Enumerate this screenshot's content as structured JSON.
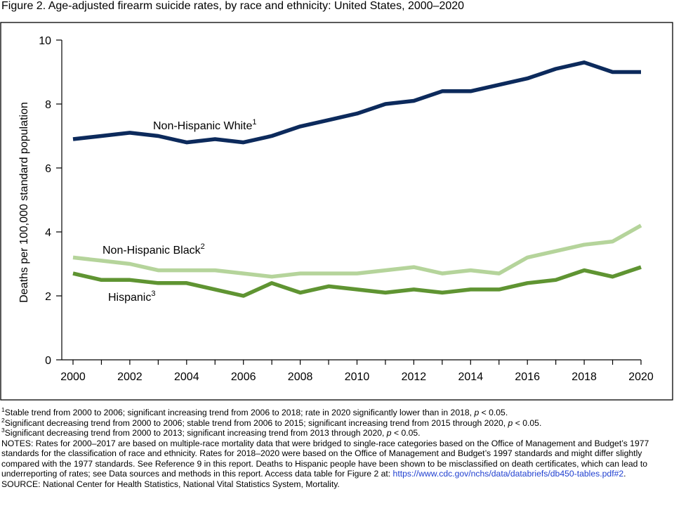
{
  "figure": {
    "title": "Figure 2. Age-adjusted firearm suicide rates, by race and ethnicity: United States, 2000–2020"
  },
  "chart_data": {
    "type": "line",
    "title": "Figure 2. Age-adjusted firearm suicide rates, by race and ethnicity: United States, 2000–2020",
    "xlabel": "",
    "ylabel": "Deaths per 100,000 standard population",
    "x": [
      2000,
      2001,
      2002,
      2003,
      2004,
      2005,
      2006,
      2007,
      2008,
      2009,
      2010,
      2011,
      2012,
      2013,
      2014,
      2015,
      2016,
      2017,
      2018,
      2019,
      2020
    ],
    "xlim": [
      2000,
      2020
    ],
    "ylim": [
      0,
      10
    ],
    "x_ticks": [
      2000,
      2002,
      2004,
      2006,
      2008,
      2010,
      2012,
      2014,
      2016,
      2018,
      2020
    ],
    "y_ticks": [
      0,
      2,
      4,
      6,
      8,
      10
    ],
    "grid": false,
    "legend": "inline labels",
    "series": [
      {
        "name": "Non-Hispanic White",
        "footnote": "1",
        "color": "#0c2a5c",
        "values": [
          6.9,
          7.0,
          7.1,
          7.0,
          6.8,
          6.9,
          6.8,
          7.0,
          7.3,
          7.5,
          7.7,
          8.0,
          8.1,
          8.4,
          8.4,
          8.6,
          8.8,
          9.1,
          9.3,
          9.0,
          9.0
        ]
      },
      {
        "name": "Non-Hispanic Black",
        "footnote": "2",
        "color": "#b5d49b",
        "values": [
          3.2,
          3.1,
          3.0,
          2.8,
          2.8,
          2.8,
          2.7,
          2.6,
          2.7,
          2.7,
          2.7,
          2.8,
          2.9,
          2.7,
          2.8,
          2.7,
          3.2,
          3.4,
          3.6,
          3.7,
          4.2
        ]
      },
      {
        "name": "Hispanic",
        "footnote": "3",
        "color": "#5f9432",
        "values": [
          2.7,
          2.5,
          2.5,
          2.4,
          2.4,
          2.2,
          2.0,
          2.4,
          2.1,
          2.3,
          2.2,
          2.1,
          2.2,
          2.1,
          2.2,
          2.2,
          2.4,
          2.5,
          2.8,
          2.6,
          2.9
        ]
      }
    ]
  },
  "notes": {
    "footnotes": [
      {
        "num": "1",
        "text": "Stable trend from 2000 to 2006; significant increasing trend from 2006 to 2018; rate in 2020 significantly lower than in 2018, ",
        "p_label": "p",
        "tail": " < 0.05."
      },
      {
        "num": "2",
        "text": "Significant decreasing trend from 2000 to 2006; stable trend from 2006 to 2015; significant increasing trend from 2015 through 2020, ",
        "p_label": "p",
        "tail": " < 0.05."
      },
      {
        "num": "3",
        "text": "Significant decreasing trend from 2000 to 2013; significant increasing trend from 2013 through 2020, ",
        "p_label": "p",
        "tail": " < 0.05."
      }
    ],
    "notes_text": "NOTES: Rates for 2000–2017 are based on multiple-race mortality data that were bridged to single-race categories based on the Office of Management and Budget’s 1977 standards for the classification of race and ethnicity. Rates for 2018–2020 were based on the Office of Management and Budget’s 1997 standards and might differ slightly compared with the 1977 standards. See Reference 9 in this report. Deaths to Hispanic people have been shown to be misclassified on death certificates, which can lead to underreporting of rates; see Data sources and methods in this report. Access data table for Figure 2 at: ",
    "link_text": "https://www.cdc.gov/nchs/data/databriefs/db450-tables.pdf#2",
    "link_tail": ".",
    "source": "SOURCE: National Center for Health Statistics, National Vital Statistics System, Mortality."
  }
}
